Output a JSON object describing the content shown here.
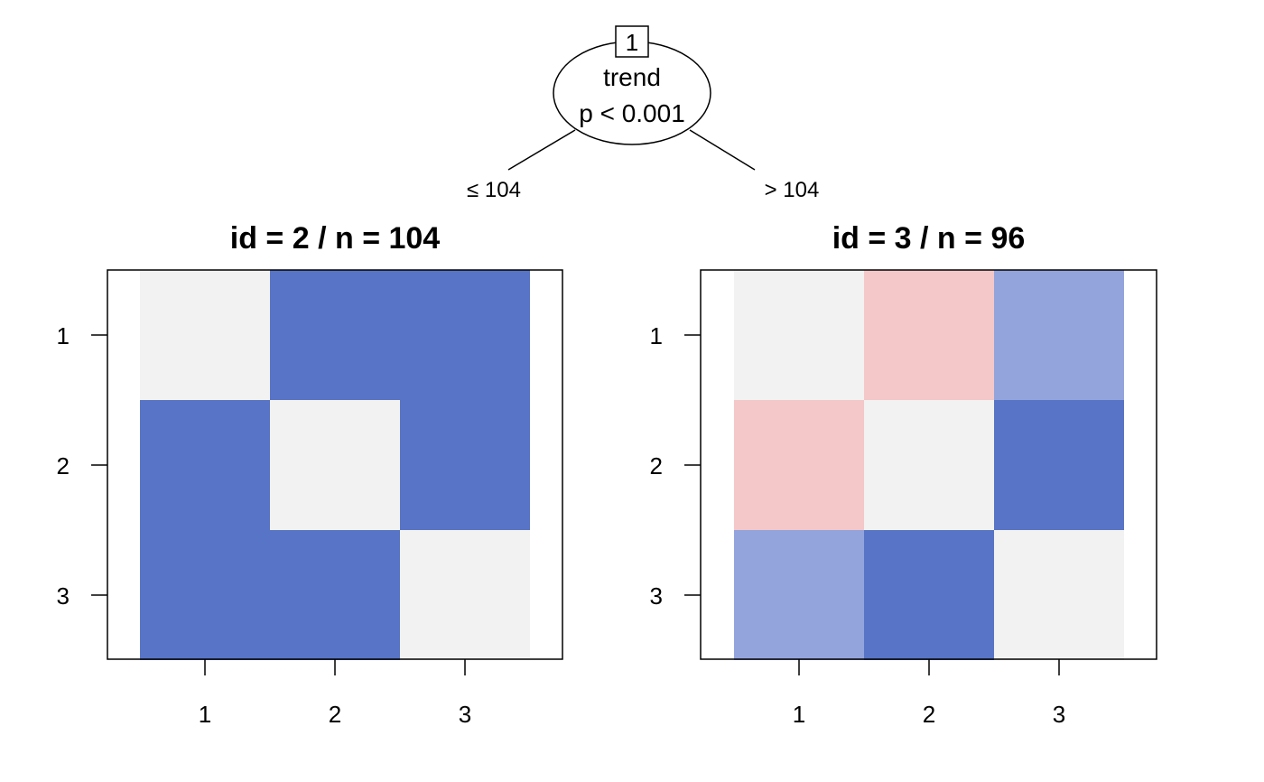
{
  "tree": {
    "root": {
      "id": "1",
      "variable": "trend",
      "p_value": "p < 0.001"
    },
    "edges": {
      "left": "≤ 104",
      "right": "> 104"
    }
  },
  "colors": {
    "strong_blue": "#5874C6",
    "light_blue": "#93A3DC",
    "light_gray": "#F2F2F2",
    "light_red": "#F4C7C9"
  },
  "chart_data": [
    {
      "type": "heatmap",
      "title": "id =  2  / n = 104",
      "x_ticks": [
        "1",
        "2",
        "3"
      ],
      "y_ticks": [
        "1",
        "2",
        "3"
      ],
      "cells": [
        [
          "light_gray",
          "strong_blue",
          "strong_blue"
        ],
        [
          "strong_blue",
          "light_gray",
          "strong_blue"
        ],
        [
          "strong_blue",
          "strong_blue",
          "light_gray"
        ]
      ]
    },
    {
      "type": "heatmap",
      "title": "id =  3  / n = 96",
      "x_ticks": [
        "1",
        "2",
        "3"
      ],
      "y_ticks": [
        "1",
        "2",
        "3"
      ],
      "cells": [
        [
          "light_gray",
          "light_red",
          "light_blue"
        ],
        [
          "light_red",
          "light_gray",
          "strong_blue"
        ],
        [
          "light_blue",
          "strong_blue",
          "light_gray"
        ]
      ]
    }
  ]
}
